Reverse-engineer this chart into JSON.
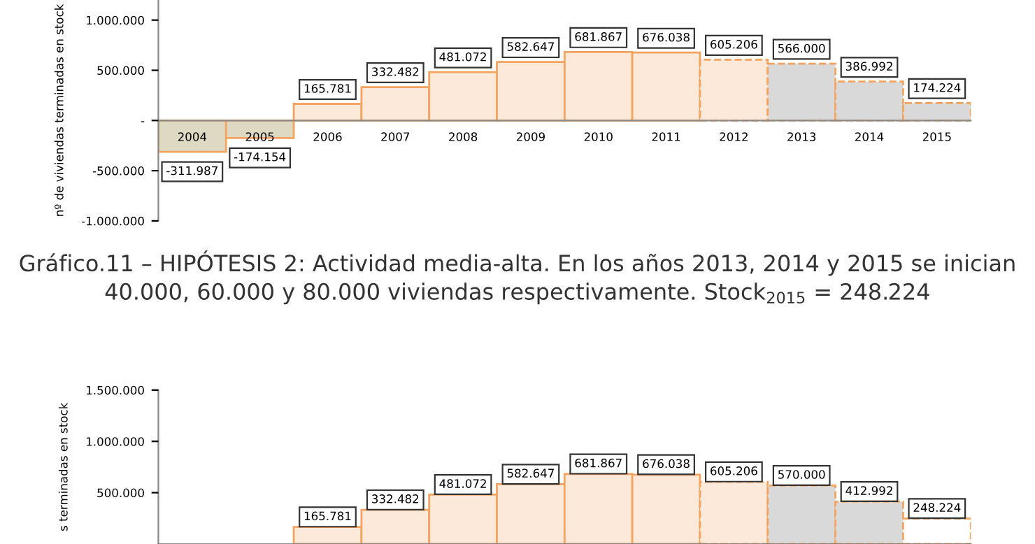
{
  "chart_data": [
    {
      "type": "bar",
      "ylabel": "nº de viviendas terminadas en stock",
      "categories": [
        "2004",
        "2005",
        "2006",
        "2007",
        "2008",
        "2009",
        "2010",
        "2011",
        "2012",
        "2013",
        "2014",
        "2015"
      ],
      "series": [
        {
          "values": [
            -311987,
            -174154,
            165781,
            332482,
            481072,
            582647,
            681867,
            676038,
            null,
            null,
            null,
            null
          ],
          "value_labels": [
            "-311.987",
            "-174.154",
            "165.781",
            "332.482",
            "481.072",
            "582.647",
            "681.867",
            "676.038",
            null,
            null,
            null,
            null
          ],
          "colors": [
            "#ddd9c3",
            "#ddd9c3",
            "#fde9d9",
            "#fde9d9",
            "#fde9d9",
            "#fde9d9",
            "#fde9d9",
            "#fde9d9",
            null,
            null,
            null,
            null
          ],
          "line_style": "solid"
        },
        {
          "values": [
            null,
            null,
            null,
            null,
            null,
            null,
            null,
            null,
            605206,
            566000,
            386992,
            174224
          ],
          "value_labels": [
            null,
            null,
            null,
            null,
            null,
            null,
            null,
            null,
            "605.206",
            "566.000",
            "386.992",
            "174.224"
          ],
          "colors": [
            null,
            null,
            null,
            null,
            null,
            null,
            null,
            null,
            "#fde9d9",
            "#d9d9d9",
            "#d9d9d9",
            "#d9d9d9"
          ],
          "line_style": "dashed"
        }
      ],
      "ylim": [
        -1000000,
        1200000
      ],
      "yticks": [
        {
          "value": 1000000,
          "label": "1.000.000"
        },
        {
          "value": 500000,
          "label": "500.000"
        },
        {
          "value": 0,
          "label": "-"
        },
        {
          "value": -500000,
          "label": "-500.000"
        },
        {
          "value": -1000000,
          "label": "-1.000.000"
        }
      ],
      "grid": false,
      "legend": false
    },
    {
      "type": "bar",
      "title": "Gráfico.11 – HIPÓTESIS 2: Actividad media-alta. En los años 2013, 2014 y 2015 se inician\n40.000, 60.000 y 80.000 viviendas respectivamente. Stock$_{2015}$ = 248.224",
      "ylabel": "s terminadas en stock",
      "categories": [
        null,
        null,
        null,
        null,
        null,
        null,
        null,
        null,
        null,
        null,
        null,
        null
      ],
      "series": [
        {
          "values": [
            null,
            null,
            165781,
            332482,
            481072,
            582647,
            681867,
            676038,
            null,
            null,
            null,
            null
          ],
          "value_labels": [
            null,
            null,
            "165.781",
            "332.482",
            "481.072",
            "582.647",
            "681.867",
            "676.038",
            null,
            null,
            null,
            null
          ],
          "colors": [
            null,
            null,
            "#fde9d9",
            "#fde9d9",
            "#fde9d9",
            "#fde9d9",
            "#fde9d9",
            "#fde9d9",
            null,
            null,
            null,
            null
          ],
          "line_style": "solid"
        },
        {
          "values": [
            null,
            null,
            null,
            null,
            null,
            null,
            null,
            null,
            605206,
            570000,
            412992,
            248224
          ],
          "value_labels": [
            null,
            null,
            null,
            null,
            null,
            null,
            null,
            null,
            "605.206",
            "570.000",
            "412.992",
            "248.224"
          ],
          "colors": [
            null,
            null,
            null,
            null,
            null,
            null,
            null,
            null,
            "#fde9d9",
            "#d9d9d9",
            "#d9d9d9",
            "#ffffff"
          ],
          "line_style": "dashed"
        }
      ],
      "ylim": [
        0,
        1500000
      ],
      "yticks": [
        {
          "value": 500000,
          "label": "500.000"
        },
        {
          "value": 1000000,
          "label": "1.000.000"
        },
        {
          "value": 1500000,
          "label": "1.500.000"
        }
      ],
      "tick_labels": "y",
      "grid": false,
      "legend": false
    }
  ]
}
